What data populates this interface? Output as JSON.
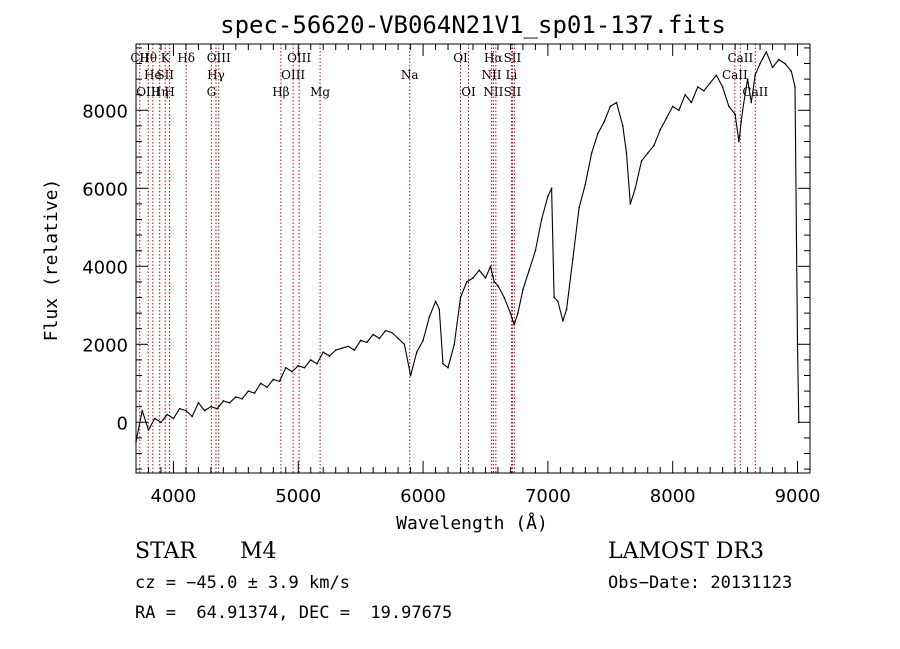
{
  "chart_data": {
    "type": "line",
    "title": "spec-56620-VB064N21V1_sp01-137.fits",
    "xlabel": "Wavelength (Å)",
    "ylabel": "Flux (relative)",
    "xlim": [
      3700,
      9100
    ],
    "ylim": [
      -1300,
      9700
    ],
    "xticks": [
      4000,
      5000,
      6000,
      7000,
      8000,
      9000
    ],
    "yticks": [
      0,
      2000,
      4000,
      6000,
      8000
    ],
    "xtick_labels": [
      "4000",
      "5000",
      "6000",
      "7000",
      "8000",
      "9000"
    ],
    "ytick_labels": [
      "0",
      "2000",
      "4000",
      "6000",
      "8000"
    ],
    "series": [
      {
        "name": "flux",
        "color": "#000000",
        "x": [
          3700,
          3750,
          3800,
          3850,
          3900,
          3950,
          4000,
          4050,
          4100,
          4150,
          4200,
          4250,
          4300,
          4350,
          4400,
          4450,
          4500,
          4550,
          4600,
          4650,
          4700,
          4750,
          4800,
          4850,
          4900,
          4950,
          5000,
          5050,
          5100,
          5150,
          5200,
          5250,
          5300,
          5350,
          5400,
          5450,
          5500,
          5550,
          5600,
          5650,
          5700,
          5750,
          5800,
          5850,
          5900,
          5950,
          6000,
          6050,
          6100,
          6130,
          6160,
          6200,
          6250,
          6300,
          6350,
          6400,
          6450,
          6500,
          6540,
          6570,
          6600,
          6650,
          6700,
          6730,
          6760,
          6800,
          6850,
          6900,
          6950,
          7000,
          7030,
          7050,
          7080,
          7120,
          7150,
          7200,
          7250,
          7300,
          7350,
          7400,
          7450,
          7500,
          7550,
          7600,
          7630,
          7660,
          7700,
          7750,
          7800,
          7850,
          7900,
          7950,
          8000,
          8050,
          8100,
          8150,
          8200,
          8250,
          8300,
          8350,
          8400,
          8450,
          8500,
          8530,
          8560,
          8600,
          8630,
          8660,
          8700,
          8750,
          8800,
          8850,
          8900,
          8950,
          8980,
          9000,
          9010
        ],
        "y": [
          -500,
          300,
          -200,
          100,
          0,
          200,
          100,
          350,
          300,
          150,
          500,
          300,
          400,
          350,
          550,
          500,
          650,
          600,
          800,
          750,
          1000,
          900,
          1100,
          1050,
          1400,
          1300,
          1450,
          1400,
          1600,
          1500,
          1800,
          1700,
          1850,
          1900,
          1950,
          1850,
          2100,
          2050,
          2250,
          2150,
          2350,
          2300,
          2150,
          2000,
          1200,
          1800,
          2100,
          2700,
          3100,
          2900,
          1500,
          1400,
          2000,
          3200,
          3600,
          3700,
          3900,
          3700,
          4000,
          3600,
          3500,
          3200,
          2800,
          2500,
          2800,
          3400,
          3900,
          4400,
          5200,
          5800,
          6000,
          3200,
          3100,
          2600,
          2900,
          4200,
          5500,
          6100,
          6900,
          7400,
          7700,
          8100,
          8200,
          7600,
          6900,
          5600,
          6000,
          6700,
          6900,
          7100,
          7500,
          7800,
          8100,
          8000,
          8400,
          8200,
          8600,
          8500,
          8700,
          8900,
          8600,
          8100,
          7900,
          7200,
          8000,
          8800,
          8200,
          8900,
          9200,
          9500,
          9100,
          9300,
          9200,
          9000,
          8600,
          2000,
          0
        ]
      }
    ],
    "lines": [
      {
        "x": 3730,
        "labels": [
          "CII"
        ]
      },
      {
        "x": 3798,
        "labels": [
          "Hθ",
          "",
          "OIII"
        ]
      },
      {
        "x": 3835,
        "labels": [
          "",
          "He"
        ]
      },
      {
        "x": 3890,
        "labels": [
          "",
          "",
          "Hη"
        ]
      },
      {
        "x": 3934,
        "labels": [
          "K",
          "SII"
        ]
      },
      {
        "x": 3969,
        "labels": [
          "",
          "",
          "H"
        ]
      },
      {
        "x": 4102,
        "labels": [
          "Hδ"
        ]
      },
      {
        "x": 4304,
        "labels": [
          "",
          "",
          "G"
        ]
      },
      {
        "x": 4341,
        "labels": [
          "",
          "Hγ"
        ]
      },
      {
        "x": 4363,
        "labels": [
          "OIII"
        ]
      },
      {
        "x": 4861,
        "labels": [
          "",
          "",
          "Hβ"
        ]
      },
      {
        "x": 4959,
        "labels": [
          "",
          "OIII"
        ]
      },
      {
        "x": 5007,
        "labels": [
          "OIII"
        ]
      },
      {
        "x": 5175,
        "labels": [
          "",
          "",
          "Mg"
        ]
      },
      {
        "x": 5893,
        "labels": [
          "",
          "Na"
        ]
      },
      {
        "x": 6300,
        "labels": [
          "OI"
        ]
      },
      {
        "x": 6364,
        "labels": [
          "",
          "",
          "OI"
        ]
      },
      {
        "x": 6548,
        "labels": [
          "",
          "NII"
        ]
      },
      {
        "x": 6563,
        "labels": [
          "Hα",
          "",
          "NII"
        ]
      },
      {
        "x": 6583,
        "labels": [
          ""
        ]
      },
      {
        "x": 6708,
        "labels": [
          "",
          "Li"
        ]
      },
      {
        "x": 6716,
        "labels": [
          "SII",
          "",
          "SII"
        ]
      },
      {
        "x": 6731,
        "labels": [
          ""
        ]
      },
      {
        "x": 8498,
        "labels": [
          "",
          "CaII"
        ]
      },
      {
        "x": 8542,
        "labels": [
          "CaII"
        ]
      },
      {
        "x": 8662,
        "labels": [
          "",
          "",
          "CaII"
        ]
      }
    ]
  },
  "info": {
    "class": "STAR",
    "subclass": "M4",
    "survey": "LAMOST DR3",
    "cz": "cz = −45.0 ± 3.9 km/s",
    "obs_date": "Obs−Date: 20131123",
    "coords": "RA =  64.91374, DEC =  19.97675"
  }
}
